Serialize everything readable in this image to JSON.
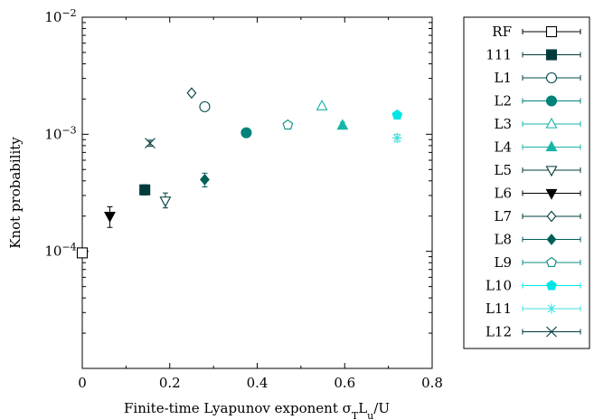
{
  "chart_data": {
    "type": "scatter",
    "xlabel": "Finite-time Lyapunov exponent σ",
    "xlabel_subscript": "T",
    "xlabel_rest": "L",
    "xlabel_subscript2": "u",
    "xlabel_tail": "/U",
    "ylabel": "Knot probability",
    "xlim": [
      0,
      0.8
    ],
    "ylim": [
      1e-05,
      0.01
    ],
    "yscale": "log",
    "x_ticks": [
      "0",
      "0.2",
      "0.4",
      "0.6",
      "0.8"
    ],
    "y_ticks": [
      {
        "base": "10",
        "exp": "−2",
        "value": 0.01
      },
      {
        "base": "10",
        "exp": "−3",
        "value": 0.001
      },
      {
        "base": "10",
        "exp": "−4",
        "value": 0.0001
      }
    ],
    "grid": false,
    "legend_position": "outside-right",
    "series": [
      {
        "name": "RF",
        "marker": "square-open",
        "color": "#000000",
        "points": [
          {
            "x": 0.0,
            "y": 9.7e-05,
            "err": [
              8.5e-06,
              8.5e-06
            ]
          }
        ]
      },
      {
        "name": "111",
        "marker": "square-filled",
        "color": "#003c3c",
        "points": [
          {
            "x": 0.143,
            "y": 0.000335,
            "err": [
              3.2e-05,
              3.5e-05
            ]
          }
        ]
      },
      {
        "name": "L1",
        "marker": "circle-open",
        "color": "#00484a",
        "points": [
          {
            "x": 0.28,
            "y": 0.00172,
            "err": [
              0.00013,
              0.00013
            ]
          }
        ]
      },
      {
        "name": "L2",
        "marker": "circle-filled",
        "color": "#00827a",
        "points": [
          {
            "x": 0.375,
            "y": 0.00103,
            "err": [
              3e-05,
              3e-05
            ]
          }
        ]
      },
      {
        "name": "L3",
        "marker": "triangle-open",
        "color": "#19b4a8",
        "points": [
          {
            "x": 0.548,
            "y": 0.00174,
            "err": [
              6e-05,
              6e-05
            ]
          }
        ]
      },
      {
        "name": "L4",
        "marker": "triangle-filled",
        "color": "#19b4a8",
        "points": [
          {
            "x": 0.595,
            "y": 0.00119,
            "err": [
              8e-05,
              8e-05
            ]
          }
        ]
      },
      {
        "name": "L5",
        "marker": "triangle-down-open",
        "color": "#003c3c",
        "points": [
          {
            "x": 0.19,
            "y": 0.00027,
            "err": [
              3.5e-05,
              4.5e-05
            ]
          }
        ]
      },
      {
        "name": "L6",
        "marker": "triangle-down-filled",
        "color": "#000000",
        "points": [
          {
            "x": 0.063,
            "y": 0.0002,
            "err": [
              4e-05,
              4e-05
            ]
          }
        ]
      },
      {
        "name": "L7",
        "marker": "diamond-open",
        "color": "#003c3c",
        "points": [
          {
            "x": 0.25,
            "y": 0.00225,
            "err": [
              8e-05,
              8e-05
            ]
          }
        ]
      },
      {
        "name": "L8",
        "marker": "diamond-filled",
        "color": "#006058",
        "points": [
          {
            "x": 0.28,
            "y": 0.00041,
            "err": [
              5.5e-05,
              5.5e-05
            ]
          }
        ]
      },
      {
        "name": "L9",
        "marker": "pentagon-open",
        "color": "#0b8c82",
        "points": [
          {
            "x": 0.47,
            "y": 0.0012,
            "err": [
              3e-05,
              3e-05
            ]
          }
        ]
      },
      {
        "name": "L10",
        "marker": "pentagon-filled",
        "color": "#00e6e6",
        "points": [
          {
            "x": 0.72,
            "y": 0.00146,
            "err": [
              2e-05,
              2e-05
            ]
          }
        ]
      },
      {
        "name": "L11",
        "marker": "star",
        "color": "#40e0e0",
        "points": [
          {
            "x": 0.72,
            "y": 0.00093,
            "err": [
              7e-05,
              7e-05
            ]
          }
        ]
      },
      {
        "name": "L12",
        "marker": "cross",
        "color": "#003c3c",
        "points": [
          {
            "x": 0.155,
            "y": 0.00084,
            "err": [
              5e-05,
              5e-05
            ]
          }
        ]
      }
    ]
  }
}
